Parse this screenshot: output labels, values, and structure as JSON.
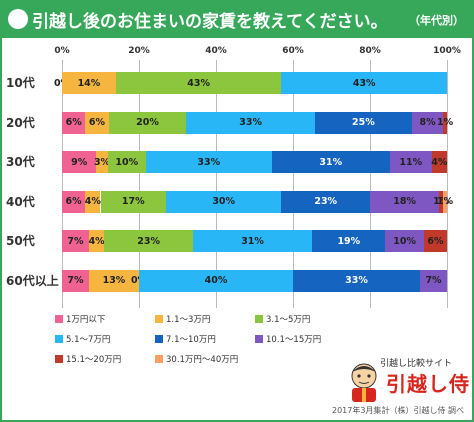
{
  "header": {
    "title": "引越し後のお住まいの家賃を教えてください。",
    "tag": "（年代別）"
  },
  "chart_data": {
    "type": "bar",
    "orientation": "horizontal",
    "stacked": "percent",
    "x_ticks": [
      "0%",
      "20%",
      "40%",
      "60%",
      "80%",
      "100%"
    ],
    "xlim": [
      0,
      100
    ],
    "categories": [
      "10代",
      "20代",
      "30代",
      "40代",
      "50代",
      "60代以上"
    ],
    "series": [
      {
        "name": "1万円以下",
        "color": "#f06292",
        "values": [
          0,
          6,
          9,
          6,
          7,
          7
        ]
      },
      {
        "name": "1.1～3万円",
        "color": "#f5b53f",
        "values": [
          14,
          6,
          3,
          4,
          4,
          13
        ]
      },
      {
        "name": "3.1～5万円",
        "color": "#8cc63f",
        "values": [
          43,
          20,
          10,
          17,
          23,
          0
        ]
      },
      {
        "name": "5.1～7万円",
        "color": "#29b6f6",
        "values": [
          43,
          33,
          33,
          30,
          31,
          40
        ]
      },
      {
        "name": "7.1～10万円",
        "color": "#1565c0",
        "values": [
          0,
          25,
          31,
          23,
          19,
          33
        ]
      },
      {
        "name": "10.1～15万円",
        "color": "#7e57c2",
        "values": [
          0,
          8,
          11,
          18,
          10,
          7
        ]
      },
      {
        "name": "15.1～20万円",
        "color": "#c0392b",
        "values": [
          0,
          1,
          4,
          1,
          6,
          0
        ]
      },
      {
        "name": "30.1万円～40万円",
        "color": "#ff9f68",
        "values": [
          0,
          0,
          0,
          1,
          0,
          0
        ]
      }
    ],
    "data_labels": [
      [
        "0%",
        "14%",
        "43%",
        "43%",
        "",
        "",
        "",
        ""
      ],
      [
        "6%",
        "6%",
        "20%",
        "33%",
        "25%",
        "8%",
        "1%",
        ""
      ],
      [
        "9%",
        "3%",
        "10%",
        "33%",
        "31%",
        "11%",
        "4%",
        ""
      ],
      [
        "6%",
        "4%",
        "17%",
        "30%",
        "23%",
        "18%",
        "1%",
        "1%"
      ],
      [
        "7%",
        "4%",
        "23%",
        "31%",
        "19%",
        "10%",
        "6%",
        ""
      ],
      [
        "7%",
        "13%",
        "0%",
        "40%",
        "33%",
        "7%",
        "",
        ""
      ]
    ],
    "legend_position": "bottom-left"
  },
  "logo": {
    "subtitle": "引越し比較サイト",
    "name": "引越し侍"
  },
  "footer": {
    "credit": "2017年3月集計（株）引越し侍 調べ"
  }
}
